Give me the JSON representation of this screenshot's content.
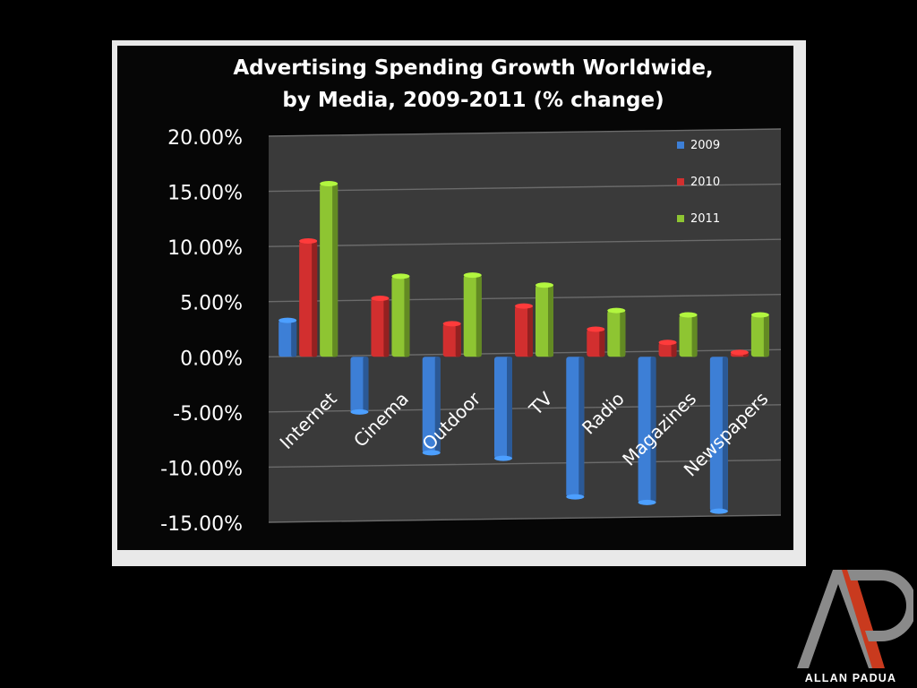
{
  "chart_data": {
    "type": "bar",
    "title": "Advertising Spending Growth Worldwide,",
    "subtitle": "by Media, 2009-2011 (% change)",
    "categories": [
      "Internet",
      "Cinema",
      "Outdoor",
      "TV",
      "Radio",
      "Magazines",
      "Newspapers"
    ],
    "series": [
      {
        "name": "2009",
        "color": "#3d7fd6",
        "values": [
          3.3,
          -5.0,
          -8.7,
          -9.2,
          -12.7,
          -13.2,
          -14.0
        ]
      },
      {
        "name": "2010",
        "color": "#d22f2f",
        "values": [
          10.5,
          5.3,
          3.0,
          4.6,
          2.5,
          1.3,
          0.4
        ]
      },
      {
        "name": "2011",
        "color": "#8ec532",
        "values": [
          15.7,
          7.3,
          7.4,
          6.5,
          4.2,
          3.8,
          3.8
        ]
      }
    ],
    "yticks": [
      "20.00%",
      "15.00%",
      "10.00%",
      "5.00%",
      "0.00%",
      "-5.00%",
      "-10.00%",
      "-15.00%"
    ],
    "ylim": [
      -15,
      20
    ],
    "xlabel": "",
    "ylabel": "",
    "grid": true,
    "legend_position": "top-right",
    "background_color": "#3a3a3a"
  },
  "brand": {
    "name": "ALLAN PADUA"
  }
}
